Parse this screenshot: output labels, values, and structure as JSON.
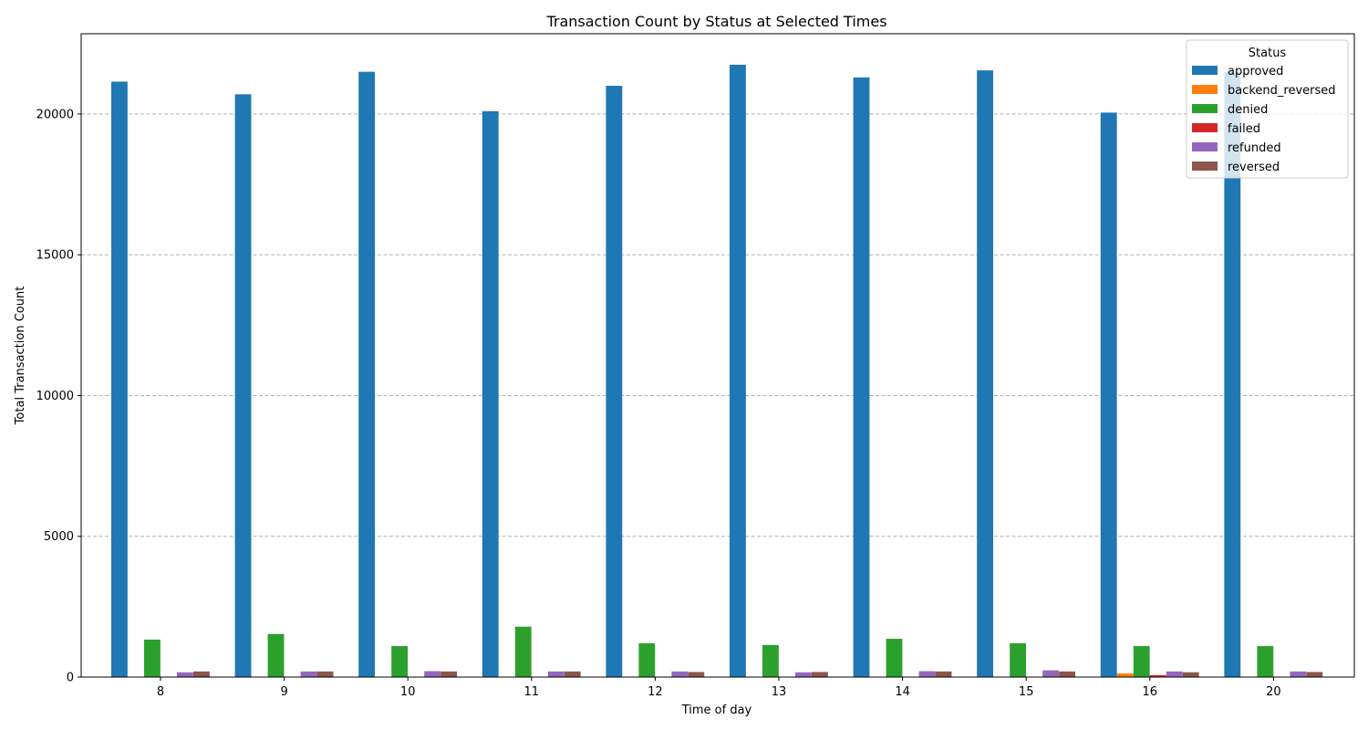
{
  "chart_data": {
    "type": "bar",
    "title": "Transaction Count by Status at Selected Times",
    "xlabel": "Time of day",
    "ylabel": "Total Transaction Count",
    "categories": [
      "8",
      "9",
      "10",
      "11",
      "12",
      "13",
      "14",
      "15",
      "16",
      "20"
    ],
    "ylim": [
      0,
      22850
    ],
    "yticks": [
      "0",
      "5000",
      "10000",
      "15000",
      "20000"
    ],
    "grid": "horizontal dashed",
    "legend": {
      "title": "Status",
      "placement": "top-right"
    },
    "series": [
      {
        "name": "approved",
        "color": "#1f77b4",
        "values": [
          21150,
          20700,
          21500,
          20100,
          21000,
          21750,
          21300,
          21550,
          20050,
          21500
        ]
      },
      {
        "name": "backend_reversed",
        "color": "#ff7f0e",
        "values": [
          0,
          0,
          0,
          0,
          0,
          0,
          0,
          0,
          130,
          0
        ]
      },
      {
        "name": "denied",
        "color": "#2ca02c",
        "values": [
          1330,
          1530,
          1100,
          1790,
          1200,
          1140,
          1360,
          1200,
          1100,
          1100
        ]
      },
      {
        "name": "failed",
        "color": "#d62728",
        "values": [
          0,
          0,
          0,
          0,
          0,
          0,
          0,
          0,
          70,
          0
        ]
      },
      {
        "name": "refunded",
        "color": "#9467bd",
        "values": [
          170,
          200,
          210,
          200,
          200,
          170,
          210,
          240,
          200,
          200
        ]
      },
      {
        "name": "reversed",
        "color": "#8c564b",
        "values": [
          200,
          200,
          200,
          200,
          180,
          180,
          200,
          200,
          170,
          180
        ]
      }
    ]
  }
}
